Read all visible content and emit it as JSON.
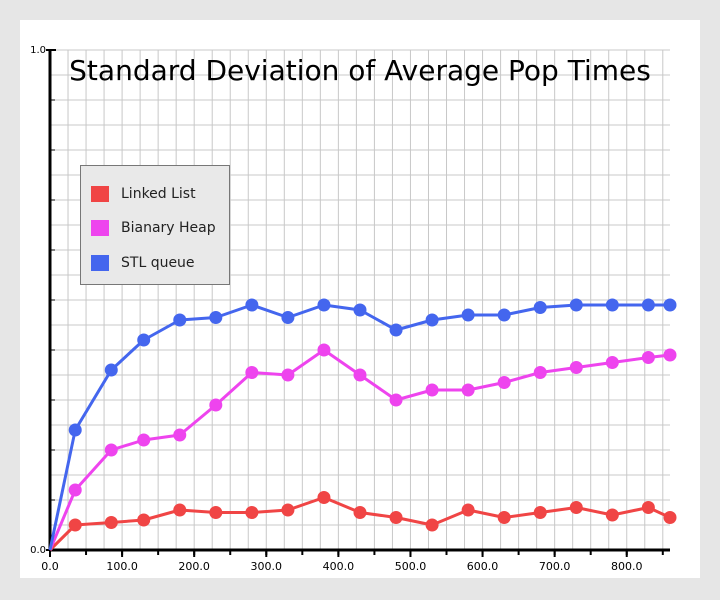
{
  "chart_data": {
    "type": "line",
    "title": "Standard Deviation of Average Pop Times",
    "xlabel": "",
    "ylabel": "",
    "x": [
      0,
      35,
      85,
      130,
      180,
      230,
      280,
      330,
      380,
      430,
      480,
      530,
      580,
      630,
      680,
      730,
      780,
      830,
      860
    ],
    "series": [
      {
        "name": "Linked List",
        "color": "#f04545",
        "values": [
          0.0,
          0.05,
          0.055,
          0.06,
          0.08,
          0.075,
          0.075,
          0.08,
          0.105,
          0.075,
          0.065,
          0.05,
          0.08,
          0.065,
          0.075,
          0.085,
          0.07,
          0.085,
          0.065
        ]
      },
      {
        "name": "Bianary Heap",
        "color": "#ee44ee",
        "values": [
          0.0,
          0.12,
          0.2,
          0.22,
          0.23,
          0.29,
          0.355,
          0.35,
          0.4,
          0.35,
          0.3,
          0.32,
          0.32,
          0.335,
          0.355,
          0.365,
          0.375,
          0.385,
          0.39
        ]
      },
      {
        "name": "STL queue",
        "color": "#4466ee",
        "values": [
          0.0,
          0.24,
          0.36,
          0.42,
          0.46,
          0.465,
          0.49,
          0.465,
          0.49,
          0.48,
          0.44,
          0.46,
          0.47,
          0.47,
          0.485,
          0.49,
          0.49,
          0.49,
          0.49
        ]
      }
    ],
    "xlim": [
      0,
      860
    ],
    "ylim": [
      0,
      1.0
    ],
    "x_ticks": [
      "0.0",
      "100.0",
      "200.0",
      "300.0",
      "400.0",
      "500.0",
      "600.0",
      "700.0",
      "800.0"
    ],
    "y_ticks": [
      "0.0",
      "1.0"
    ],
    "grid": true,
    "legend_position": "top-left"
  }
}
